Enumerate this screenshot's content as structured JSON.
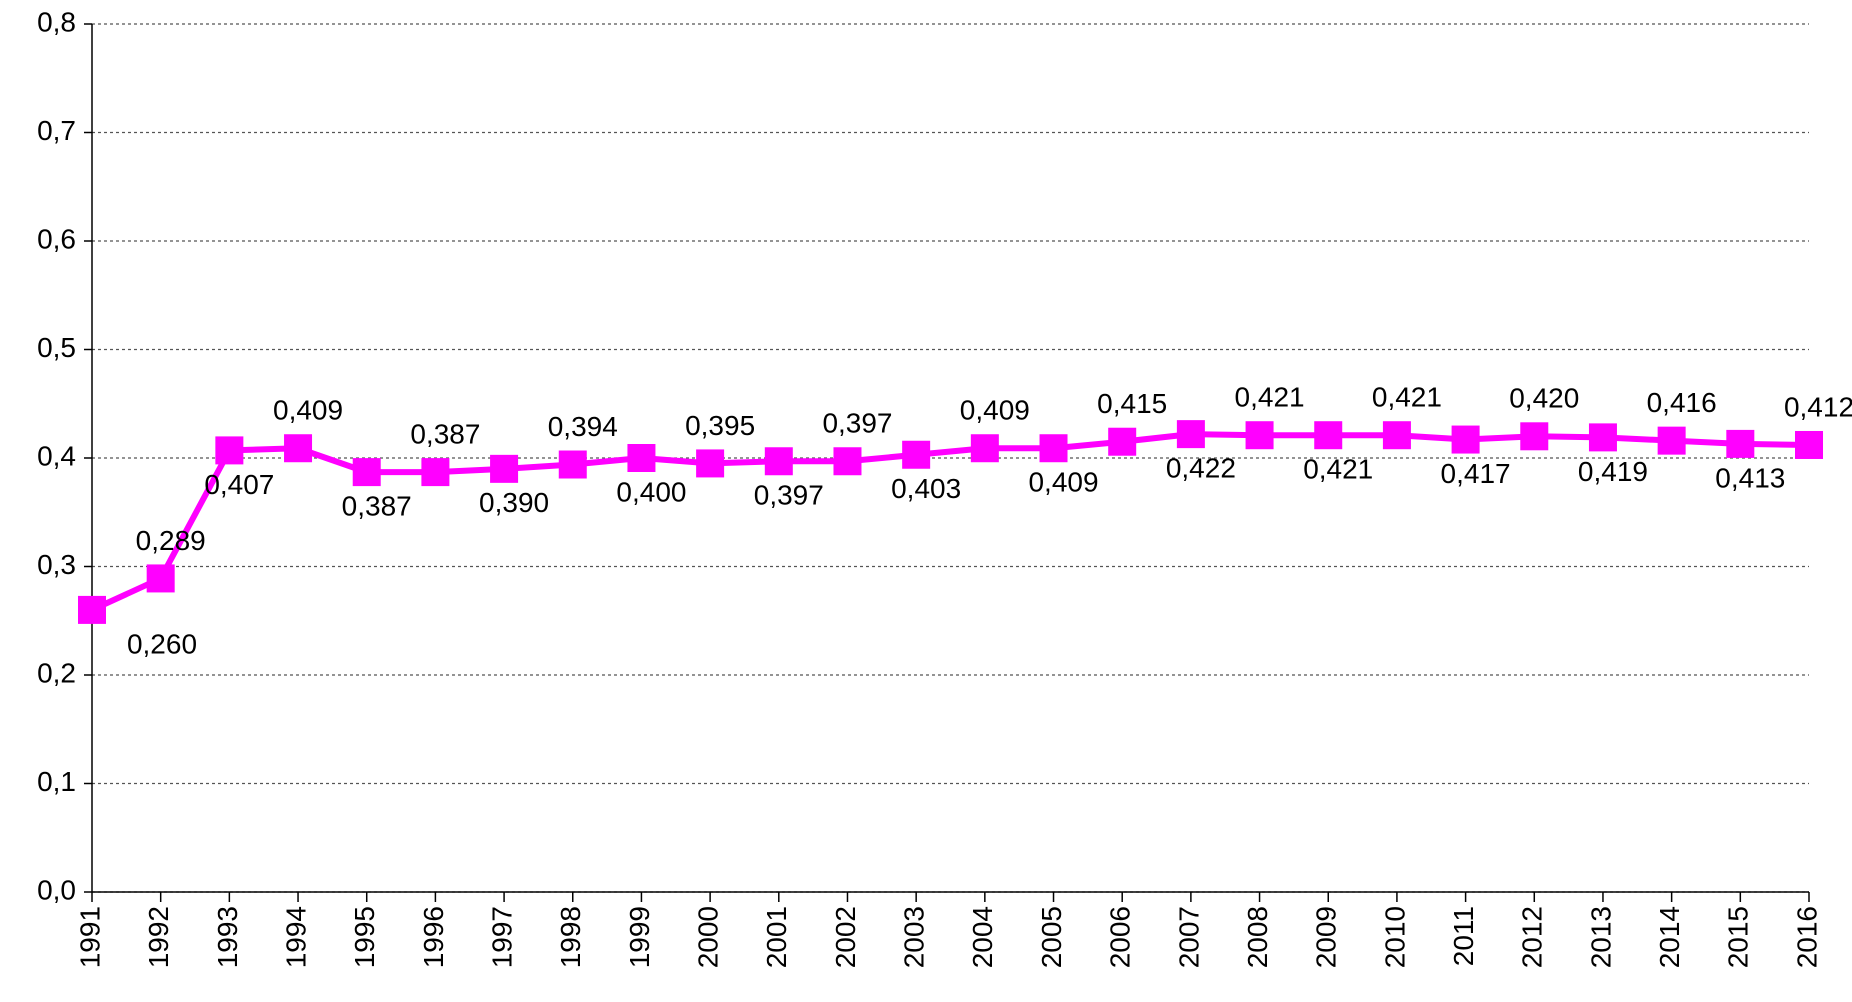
{
  "chart_data": {
    "type": "line",
    "categories": [
      "1991",
      "1992",
      "1993",
      "1994",
      "1995",
      "1996",
      "1997",
      "1998",
      "1999",
      "2000",
      "2001",
      "2002",
      "2003",
      "2004",
      "2005",
      "2006",
      "2007",
      "2008",
      "2009",
      "2010",
      "2011",
      "2012",
      "2013",
      "2014",
      "2015",
      "2016"
    ],
    "series": [
      {
        "color": "#ff00ff",
        "values": [
          0.26,
          0.289,
          0.407,
          0.409,
          0.387,
          0.387,
          0.39,
          0.394,
          0.4,
          0.395,
          0.397,
          0.397,
          0.403,
          0.409,
          0.409,
          0.415,
          0.422,
          0.421,
          0.421,
          0.421,
          0.417,
          0.42,
          0.419,
          0.416,
          0.413,
          0.412
        ],
        "value_labels": [
          "0,260",
          "0,289",
          "0,407",
          "0,409",
          "0,387",
          "0,387",
          "0,390",
          "0,394",
          "0,400",
          "0,395",
          "0,397",
          "0,397",
          "0,403",
          "0,409",
          "0,409",
          "0,415",
          "0,422",
          "0,421",
          "0,421",
          "0,421",
          "0,417",
          "0,420",
          "0,419",
          "0,416",
          "0,413",
          "0,412"
        ]
      }
    ],
    "ylim": [
      0,
      0.8
    ],
    "yticks": [
      {
        "value": 0,
        "label": "0,0"
      },
      {
        "value": 0.1,
        "label": "0,1"
      },
      {
        "value": 0.2,
        "label": "0,2"
      },
      {
        "value": 0.3,
        "label": "0,3"
      },
      {
        "value": 0.4,
        "label": "0,4"
      },
      {
        "value": 0.5,
        "label": "0,5"
      },
      {
        "value": 0.6,
        "label": "0,6"
      },
      {
        "value": 0.7,
        "label": "0,7"
      },
      {
        "value": 0.8,
        "label": "0,8"
      }
    ],
    "grid": true
  }
}
